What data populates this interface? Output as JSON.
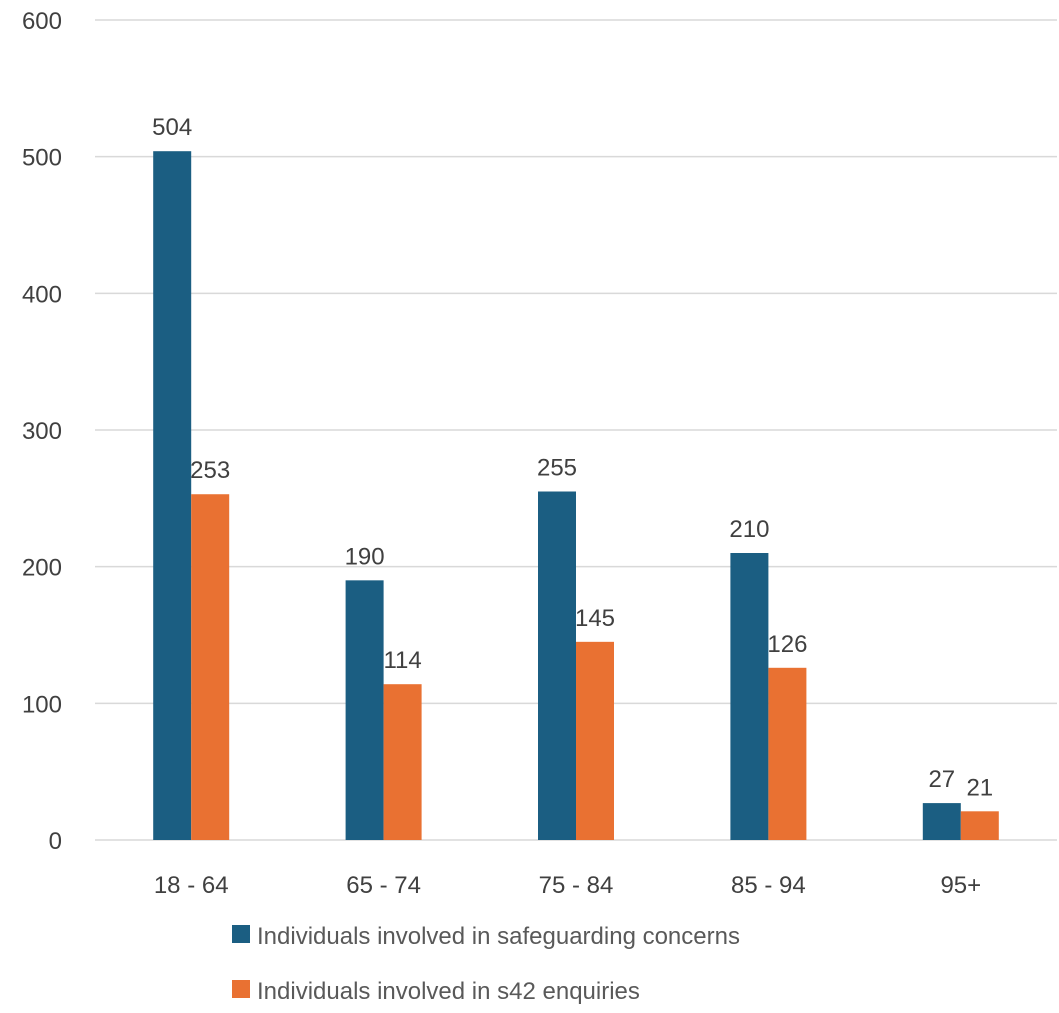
{
  "chart_data": {
    "type": "bar",
    "categories": [
      "18 - 64",
      "65 - 74",
      "75 - 84",
      "85 - 94",
      "95+"
    ],
    "series": [
      {
        "name": "Individuals involved in safeguarding concerns",
        "values": [
          504,
          190,
          255,
          210,
          27
        ],
        "color": "#1b5e82"
      },
      {
        "name": "Individuals involved in s42 enquiries",
        "values": [
          253,
          114,
          145,
          126,
          21
        ],
        "color": "#e97132"
      }
    ],
    "y_ticks": [
      0,
      100,
      200,
      300,
      400,
      500,
      600
    ],
    "ylim": [
      0,
      600
    ],
    "grid": true,
    "legend_position": "bottom",
    "data_labels": true
  }
}
